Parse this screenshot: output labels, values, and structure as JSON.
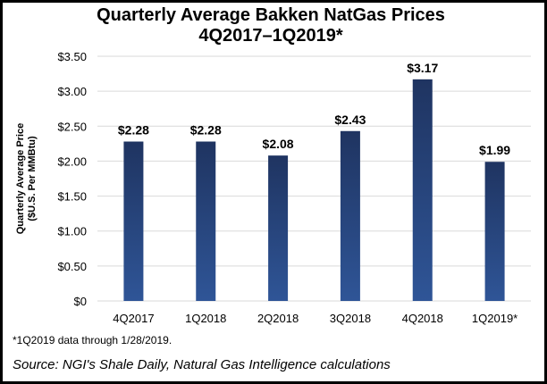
{
  "chart_data": {
    "type": "bar",
    "title": "Quarterly Average Bakken NatGas Prices",
    "subtitle": "4Q2017–1Q2019*",
    "ylabel_line1": "Quarterly Average Price",
    "ylabel_line2": "($U.S. Per MMBtu)",
    "xlabel": "",
    "categories": [
      "4Q2017",
      "1Q2018",
      "2Q2018",
      "3Q2018",
      "4Q2018",
      "1Q2019*"
    ],
    "values": [
      2.28,
      2.28,
      2.08,
      2.43,
      3.17,
      1.99
    ],
    "data_labels": [
      "$2.28",
      "$2.28",
      "$2.08",
      "$2.43",
      "$3.17",
      "$1.99"
    ],
    "ylim": [
      0,
      3.5
    ],
    "yticks": [
      0,
      0.5,
      1,
      1.5,
      2,
      2.5,
      3,
      3.5
    ],
    "ytick_labels": [
      "$0",
      "$0.50",
      "$1.00",
      "$1.50",
      "$2.00",
      "$2.50",
      "$3.00",
      "$3.50"
    ],
    "grid": true,
    "legend": "none",
    "colors": {
      "bar_top": "#1f3461",
      "bar_bottom": "#2f5597",
      "grid": "#d9d9d9"
    }
  },
  "footnote": "*1Q2019 data through 1/28/2019.",
  "source": "Source: NGI's Shale Daily, Natural Gas Intelligence calculations"
}
